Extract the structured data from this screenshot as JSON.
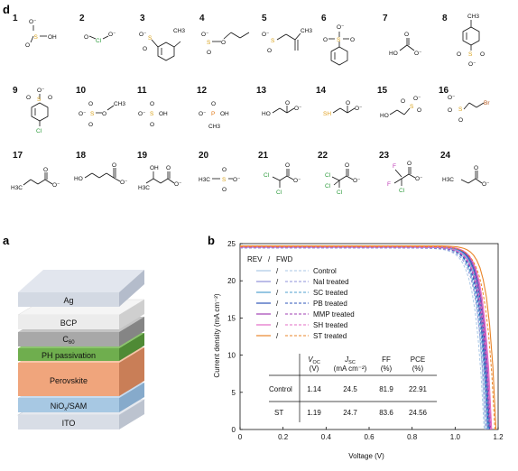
{
  "panel_d": {
    "label": "d",
    "molecules": [
      {
        "n": "1"
      },
      {
        "n": "2"
      },
      {
        "n": "3"
      },
      {
        "n": "4"
      },
      {
        "n": "5"
      },
      {
        "n": "6"
      },
      {
        "n": "7"
      },
      {
        "n": "8"
      },
      {
        "n": "9"
      },
      {
        "n": "10"
      },
      {
        "n": "11"
      },
      {
        "n": "12"
      },
      {
        "n": "13"
      },
      {
        "n": "14"
      },
      {
        "n": "15"
      },
      {
        "n": "16"
      },
      {
        "n": "17"
      },
      {
        "n": "18"
      },
      {
        "n": "19"
      },
      {
        "n": "20"
      },
      {
        "n": "21"
      },
      {
        "n": "22"
      },
      {
        "n": "23"
      },
      {
        "n": "24"
      }
    ],
    "atom_labels": {
      "OH": "OH",
      "S": "S",
      "Cl": "Cl",
      "O": "O",
      "CH3": "CH3",
      "P": "P",
      "HO": "HO",
      "SH": "SH",
      "Br": "Br",
      "H3C": "H3C",
      "F": "F",
      "Om": "O⁻"
    }
  },
  "panel_a": {
    "label": "a",
    "layers": [
      "Ag",
      "BCP",
      "C60",
      "PH passivation",
      "Perovskite",
      "NiOx/SAM",
      "ITO"
    ],
    "colors": {
      "Ag": "#d3d9e3",
      "BCP": "#ececec",
      "C60": "#a8a8a8",
      "PH passivation": "#6fae4e",
      "Perovskite": "#f0a57c",
      "NiOx/SAM": "#a7c8e3",
      "ITO": "#d8dde6"
    }
  },
  "panel_b": {
    "label": "b",
    "legend_header": {
      "rev": "REV",
      "slash": "/",
      "fwd": "FWD"
    },
    "table": {
      "headers": [
        "V_OC (V)",
        "J_SC (mA cm⁻²)",
        "FF (%)",
        "PCE (%)"
      ],
      "header_top": [
        "VOC",
        "JSC",
        "FF",
        "PCE"
      ],
      "header_unit": [
        "(V)",
        "(mA cm⁻²)",
        "(%)",
        "(%)"
      ],
      "rows": [
        {
          "name": "Control",
          "voc": "1.14",
          "jsc": "24.5",
          "ff": "81.9",
          "pce": "22.91"
        },
        {
          "name": "ST",
          "voc": "1.19",
          "jsc": "24.7",
          "ff": "83.6",
          "pce": "24.56"
        }
      ]
    }
  },
  "chart_data": {
    "type": "line",
    "xlabel": "Voltage (V)",
    "ylabel": "Current density (mA cm⁻²)",
    "xlim": [
      0,
      1.2
    ],
    "ylim": [
      0,
      25
    ],
    "xticks": [
      "0",
      "0.2",
      "0.4",
      "0.6",
      "0.8",
      "1.0",
      "1.2"
    ],
    "yticks": [
      "0",
      "5",
      "10",
      "15",
      "20",
      "25"
    ],
    "legend_position": "upper-left",
    "series": [
      {
        "name": "Control",
        "color": "#a9c7e6",
        "voc": 1.14,
        "jsc": 24.5
      },
      {
        "name": "NaI treated",
        "color": "#8e90d8",
        "voc": 1.15,
        "jsc": 24.5
      },
      {
        "name": "SC treated",
        "color": "#4f9fcf",
        "voc": 1.155,
        "jsc": 24.6
      },
      {
        "name": "PB treated",
        "color": "#2d55b8",
        "voc": 1.16,
        "jsc": 24.6
      },
      {
        "name": "MMP treated",
        "color": "#a23fb3",
        "voc": 1.165,
        "jsc": 24.6
      },
      {
        "name": "SH treated",
        "color": "#e36cc6",
        "voc": 1.17,
        "jsc": 24.6
      },
      {
        "name": "ST treated",
        "color": "#e9852a",
        "voc": 1.19,
        "jsc": 24.7
      }
    ]
  }
}
